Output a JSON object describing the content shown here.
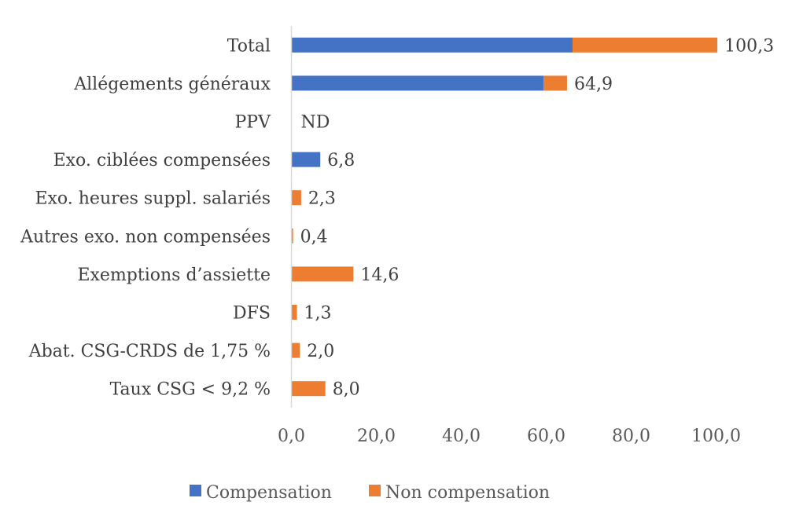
{
  "chart_data": {
    "type": "bar",
    "orientation": "horizontal",
    "stacked": true,
    "title": "",
    "xlabel": "",
    "ylabel": "",
    "xlim": [
      0,
      100
    ],
    "x_ticks": [
      "0,0",
      "20,0",
      "40,0",
      "60,0",
      "80,0",
      "100,0"
    ],
    "x_tick_values": [
      0,
      20,
      40,
      60,
      80,
      100
    ],
    "grid": false,
    "legend_position": "bottom",
    "categories": [
      "Total",
      "Allégements généraux",
      "PPV",
      "Exo. ciblées compensées",
      "Exo. heures suppl. salariés",
      "Autres exo. non compensées",
      "Exemptions d’assiette",
      "DFS",
      "Abat. CSG-CRDS de 1,75 %",
      "Taux CSG < 9,2 %"
    ],
    "series": [
      {
        "name": "Compensation",
        "color": "#4472C4",
        "values": [
          66.2,
          59.4,
          0,
          6.8,
          0,
          0,
          0,
          0,
          0,
          0
        ]
      },
      {
        "name": "Non compensation",
        "color": "#ED7D31",
        "values": [
          34.1,
          5.5,
          0,
          0,
          2.3,
          0.4,
          14.6,
          1.3,
          2.0,
          8.0
        ]
      }
    ],
    "data_labels": [
      "100,3",
      "64,9",
      "ND",
      "6,8",
      "2,3",
      "0,4",
      "14,6",
      "1,3",
      "2,0",
      "8,0"
    ],
    "totals": [
      100.3,
      64.9,
      null,
      6.8,
      2.3,
      0.4,
      14.6,
      1.3,
      2.0,
      8.0
    ]
  }
}
